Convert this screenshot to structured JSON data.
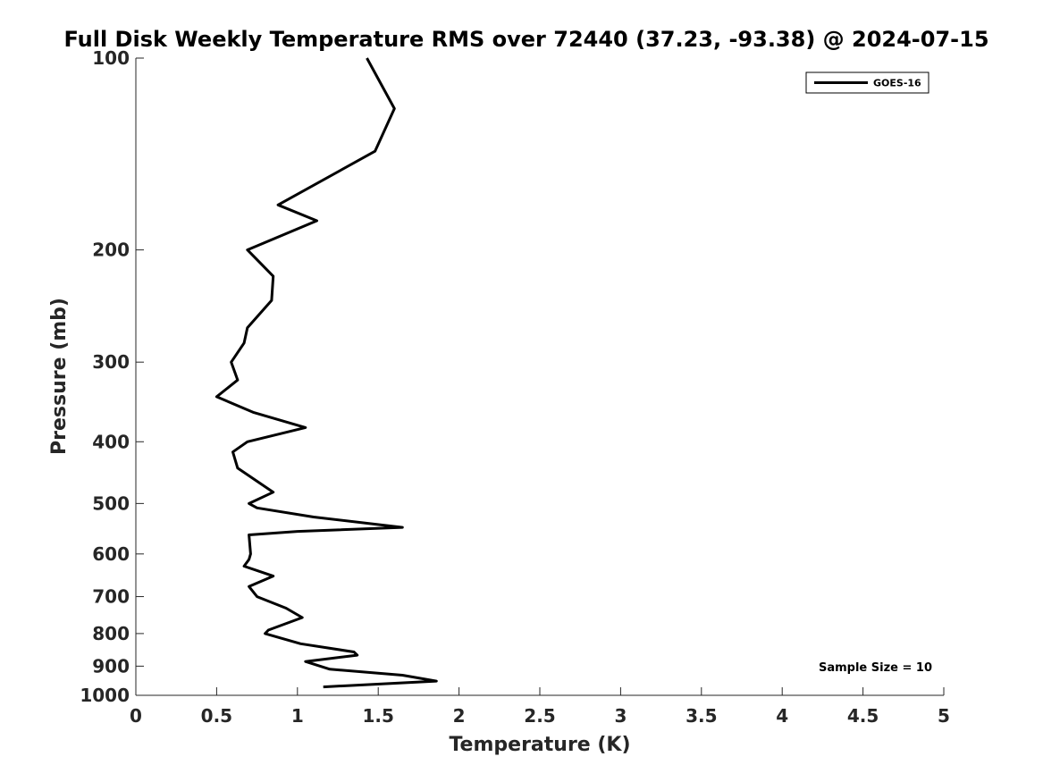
{
  "chart_data": {
    "type": "line",
    "title": "Full Disk Weekly Temperature RMS over 72440 (37.23, -93.38) @ 2024-07-15",
    "xlabel": "Temperature (K)",
    "ylabel": "Pressure (mb)",
    "xlim": [
      0,
      5
    ],
    "ylim": [
      100,
      1000
    ],
    "yscale": "log",
    "yreversed": true,
    "x_ticks": [
      "0",
      "0.5",
      "1",
      "1.5",
      "2",
      "2.5",
      "3",
      "3.5",
      "4",
      "4.5",
      "5"
    ],
    "y_ticks": [
      "100",
      "200",
      "300",
      "400",
      "500",
      "600",
      "700",
      "800",
      "900",
      "1000"
    ],
    "grid": false,
    "legend_position": "top-right",
    "annotation": "Sample Size = 10",
    "series": [
      {
        "name": "GOES-16",
        "color": "#000000",
        "points": [
          [
            1.43,
            100
          ],
          [
            1.6,
            120
          ],
          [
            1.48,
            140
          ],
          [
            0.88,
            170
          ],
          [
            1.12,
            180
          ],
          [
            0.69,
            200
          ],
          [
            0.85,
            220
          ],
          [
            0.84,
            240
          ],
          [
            0.69,
            265
          ],
          [
            0.67,
            280
          ],
          [
            0.59,
            300
          ],
          [
            0.63,
            320
          ],
          [
            0.5,
            340
          ],
          [
            0.73,
            360
          ],
          [
            1.05,
            380
          ],
          [
            0.69,
            400
          ],
          [
            0.6,
            415
          ],
          [
            0.63,
            440
          ],
          [
            0.85,
            480
          ],
          [
            0.7,
            500
          ],
          [
            0.75,
            508
          ],
          [
            1.1,
            525
          ],
          [
            1.65,
            545
          ],
          [
            1.0,
            553
          ],
          [
            0.7,
            560
          ],
          [
            0.71,
            600
          ],
          [
            0.7,
            612
          ],
          [
            0.67,
            627
          ],
          [
            0.85,
            650
          ],
          [
            0.7,
            675
          ],
          [
            0.75,
            700
          ],
          [
            0.93,
            730
          ],
          [
            1.03,
            755
          ],
          [
            0.82,
            790
          ],
          [
            0.8,
            800
          ],
          [
            1.02,
            830
          ],
          [
            1.35,
            855
          ],
          [
            1.37,
            865
          ],
          [
            1.05,
            885
          ],
          [
            1.2,
            910
          ],
          [
            1.65,
            930
          ],
          [
            1.86,
            950
          ],
          [
            1.16,
            970
          ]
        ]
      }
    ]
  }
}
